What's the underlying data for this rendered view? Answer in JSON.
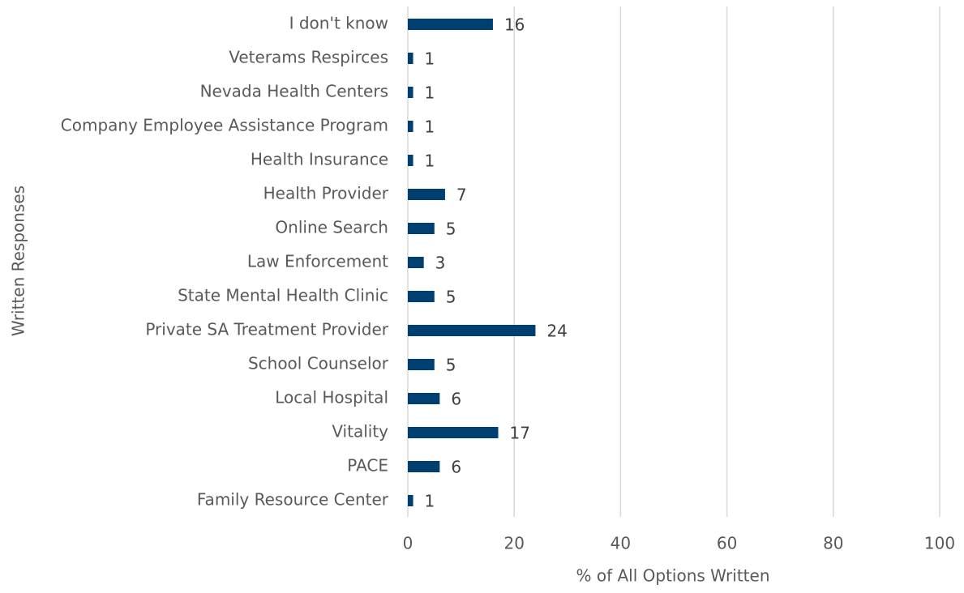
{
  "chart_data": {
    "type": "barh",
    "xlabel": "% of All Options Written",
    "ylabel": "Written Responses",
    "categories": [
      "I don't know",
      "Veterams Respirces",
      "Nevada Health Centers",
      "Company Employee Assistance Program",
      "Health Insurance",
      "Health Provider",
      "Online Search",
      "Law Enforcement",
      "State Mental Health Clinic",
      "Private SA Treatment Provider",
      "School Counselor",
      "Local Hospital",
      "Vitality",
      "PACE",
      "Family Resource Center"
    ],
    "values": [
      16,
      1,
      1,
      1,
      1,
      7,
      5,
      3,
      5,
      24,
      5,
      6,
      17,
      6,
      1
    ],
    "color": "#003f72",
    "xlim": [
      0,
      100
    ],
    "xticks": [
      0,
      20,
      40,
      60,
      80,
      100
    ],
    "grid": true
  }
}
